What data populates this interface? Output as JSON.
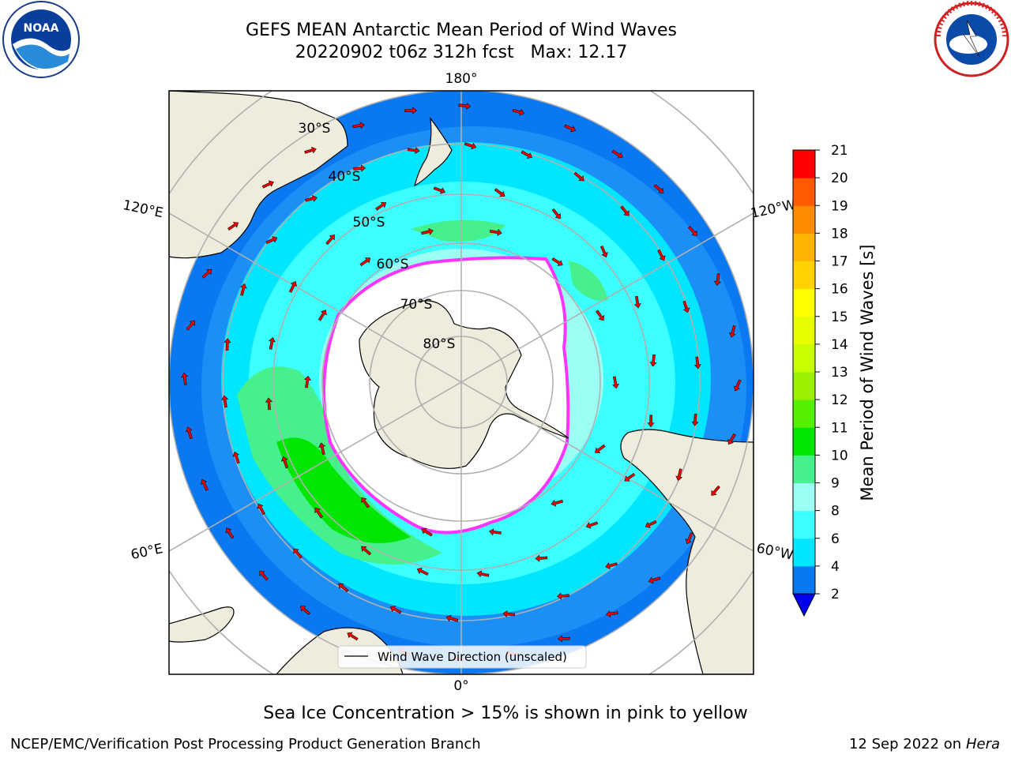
{
  "title": {
    "line1": "GEFS MEAN Antarctic Mean Period of Wind Waves",
    "line2": "20220902 t06z 312h fcst   Max: 12.17"
  },
  "logos": {
    "left": {
      "icon": "noaa-logo",
      "text": "NOAA"
    },
    "right": {
      "icon": "national-weather-service-logo",
      "text": "NATIONAL WEATHER SERVICE"
    }
  },
  "map": {
    "projection": "south-polar-stereographic",
    "longitude_labels": [
      "180°",
      "120°E",
      "120°W",
      "60°E",
      "60°W",
      "0°"
    ],
    "latitude_labels": [
      "30°S",
      "40°S",
      "50°S",
      "60°S",
      "70°S",
      "80°S"
    ],
    "legend_label": "Wind Wave Direction (unscaled)"
  },
  "colorbar": {
    "label": "Mean Period of Wind Waves [s]",
    "ticks": [
      "2",
      "4",
      "6",
      "8",
      "9",
      "10",
      "11",
      "12",
      "13",
      "14",
      "15",
      "16",
      "17",
      "18",
      "19",
      "20",
      "21"
    ],
    "colors": [
      "#0a78f0",
      "#00e6ff",
      "#3cffff",
      "#9bfff4",
      "#46f08c",
      "#00e600",
      "#55f000",
      "#9bf000",
      "#c8ff00",
      "#e6ff00",
      "#ffff00",
      "#ffd200",
      "#ffb400",
      "#ff8c00",
      "#ff5a00",
      "#ff2800",
      "#ff0000"
    ],
    "under_color": "#0000ee"
  },
  "sea_ice_note": "Sea Ice Concentration > 15% is shown in pink to yellow",
  "footer": {
    "credit": "NCEP/EMC/Verification Post Processing Product Generation Branch",
    "date": "12 Sep 2022 on",
    "machine": "Hera"
  }
}
